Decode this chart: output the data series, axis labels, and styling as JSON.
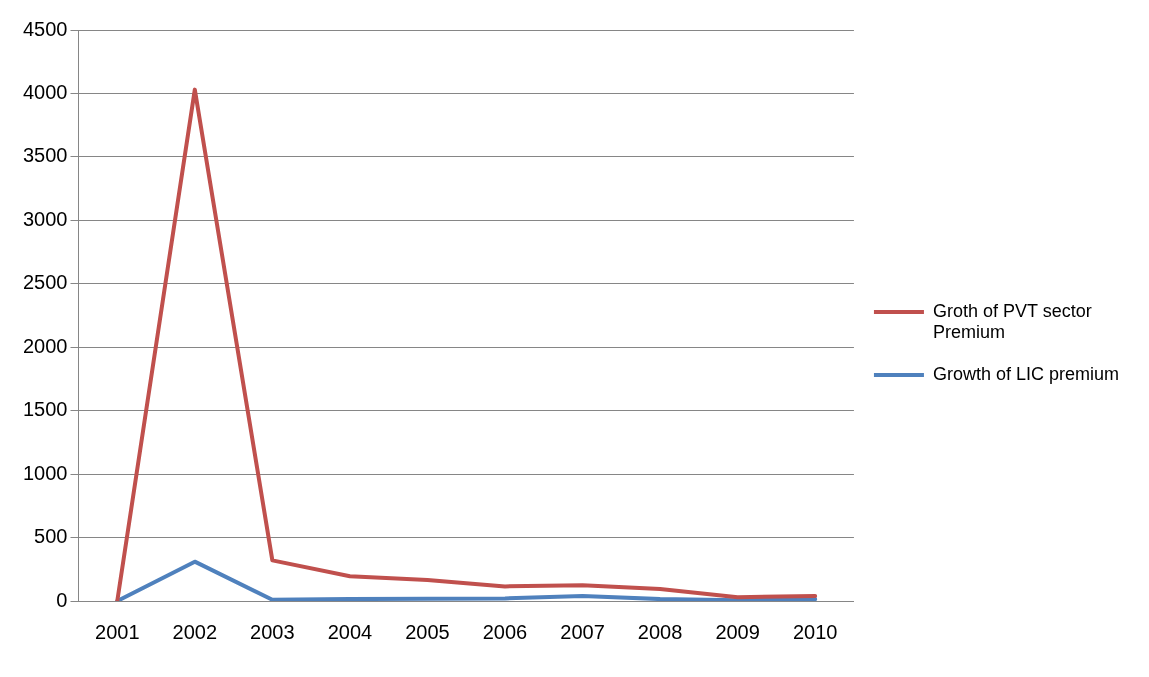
{
  "chart_data": {
    "type": "line",
    "categories": [
      "2001",
      "2002",
      "2003",
      "2004",
      "2005",
      "2006",
      "2007",
      "2008",
      "2009",
      "2010"
    ],
    "series": [
      {
        "name": "Groth of PVT sector Premium",
        "color": "#c0504d",
        "values": [
          0,
          4030,
          320,
          195,
          165,
          115,
          125,
          95,
          30,
          40
        ]
      },
      {
        "name": "Growth of LIC premium",
        "color": "#4f81bd",
        "values": [
          0,
          310,
          10,
          15,
          18,
          20,
          40,
          15,
          5,
          15
        ]
      }
    ],
    "ylim": [
      0,
      4500
    ],
    "yticks": [
      0,
      500,
      1000,
      1500,
      2000,
      2500,
      3000,
      3500,
      4000,
      4500
    ],
    "grid": "y",
    "legend": "right",
    "marker": "none",
    "line_style": "solid"
  }
}
